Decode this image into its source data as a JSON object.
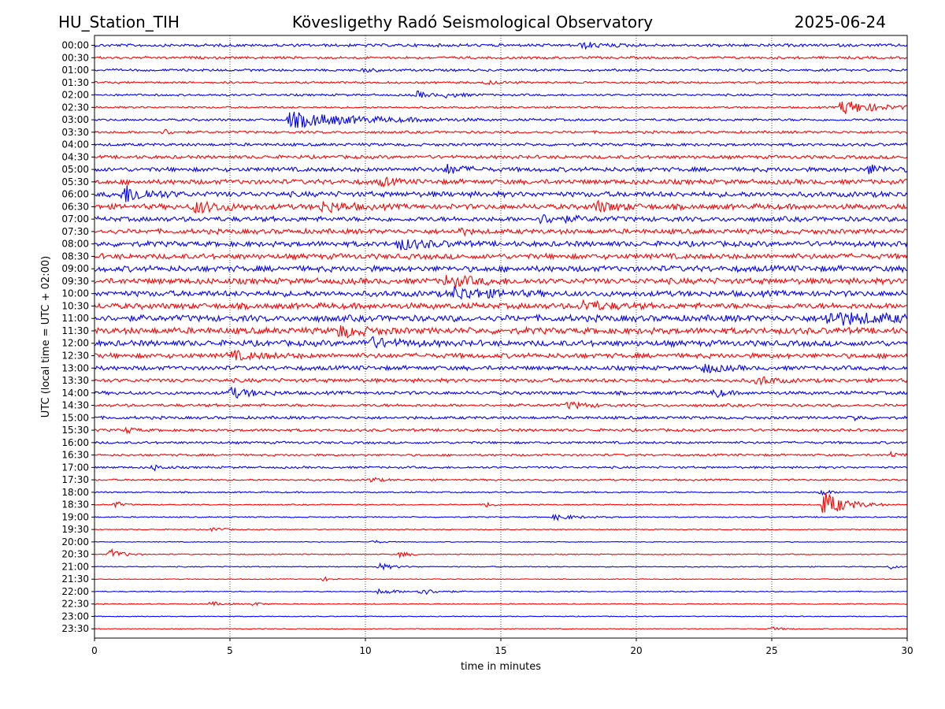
{
  "header": {
    "station": "HU_Station_TIH",
    "observatory": "Kövesligethy Radó Seismological Observatory",
    "date": "2025-06-24"
  },
  "chart_data": {
    "type": "line",
    "title": "Kövesligethy Radó Seismological Observatory",
    "xlabel": "time in minutes",
    "ylabel": "UTC (local time = UTC + 02:00)",
    "xlim": [
      0,
      30
    ],
    "xticks": [
      "0",
      "5",
      "10",
      "15",
      "20",
      "25",
      "30"
    ],
    "grid": "vertical dotted lines at each x tick",
    "colors": {
      "even_rows": "#0000ff",
      "odd_rows": "#ff0000",
      "grid": "#000000"
    },
    "rows": [
      {
        "label": "00:00",
        "color": "#0000ff",
        "amp": 0.3,
        "events": [
          {
            "t": 18.0,
            "a": 0.5,
            "d": 0.8
          }
        ]
      },
      {
        "label": "00:30",
        "color": "#ff0000",
        "amp": 0.25,
        "events": []
      },
      {
        "label": "01:00",
        "color": "#0000ff",
        "amp": 0.25,
        "events": [
          {
            "t": 10.0,
            "a": 0.3,
            "d": 0.4
          }
        ]
      },
      {
        "label": "01:30",
        "color": "#ff0000",
        "amp": 0.22,
        "events": [
          {
            "t": 14.5,
            "a": 0.3,
            "d": 0.5
          }
        ]
      },
      {
        "label": "02:00",
        "color": "#0000ff",
        "amp": 0.22,
        "events": [
          {
            "t": 11.9,
            "a": 0.6,
            "d": 0.4
          },
          {
            "t": 13.0,
            "a": 0.4,
            "d": 0.6
          }
        ]
      },
      {
        "label": "02:30",
        "color": "#ff0000",
        "amp": 0.2,
        "events": [
          {
            "t": 27.6,
            "a": 1.3,
            "d": 1.2
          }
        ]
      },
      {
        "label": "03:00",
        "color": "#0000ff",
        "amp": 0.25,
        "events": [
          {
            "t": 7.2,
            "a": 1.4,
            "d": 2.4
          }
        ]
      },
      {
        "label": "03:30",
        "color": "#ff0000",
        "amp": 0.25,
        "events": [
          {
            "t": 2.6,
            "a": 0.5,
            "d": 0.3
          }
        ]
      },
      {
        "label": "04:00",
        "color": "#0000ff",
        "amp": 0.3,
        "events": []
      },
      {
        "label": "04:30",
        "color": "#ff0000",
        "amp": 0.35,
        "events": []
      },
      {
        "label": "05:00",
        "color": "#0000ff",
        "amp": 0.45,
        "events": [
          {
            "t": 13.0,
            "a": 0.8,
            "d": 0.6
          },
          {
            "t": 28.6,
            "a": 0.8,
            "d": 0.5
          }
        ]
      },
      {
        "label": "05:30",
        "color": "#ff0000",
        "amp": 0.5,
        "events": [
          {
            "t": 10.6,
            "a": 0.7,
            "d": 0.4
          }
        ]
      },
      {
        "label": "06:00",
        "color": "#0000ff",
        "amp": 0.55,
        "events": [
          {
            "t": 1.1,
            "a": 1.6,
            "d": 0.8
          }
        ]
      },
      {
        "label": "06:30",
        "color": "#ff0000",
        "amp": 0.55,
        "events": [
          {
            "t": 3.7,
            "a": 1.0,
            "d": 1.0
          },
          {
            "t": 8.4,
            "a": 0.9,
            "d": 0.8
          },
          {
            "t": 18.5,
            "a": 0.9,
            "d": 0.8
          }
        ]
      },
      {
        "label": "07:00",
        "color": "#0000ff",
        "amp": 0.5,
        "events": [
          {
            "t": 16.5,
            "a": 0.7,
            "d": 1.0
          }
        ]
      },
      {
        "label": "07:30",
        "color": "#ff0000",
        "amp": 0.5,
        "events": [
          {
            "t": 13.4,
            "a": 0.7,
            "d": 0.3
          }
        ]
      },
      {
        "label": "08:00",
        "color": "#0000ff",
        "amp": 0.55,
        "events": [
          {
            "t": 11.2,
            "a": 0.9,
            "d": 1.0
          }
        ]
      },
      {
        "label": "08:30",
        "color": "#ff0000",
        "amp": 0.55,
        "events": []
      },
      {
        "label": "09:00",
        "color": "#0000ff",
        "amp": 0.6,
        "events": []
      },
      {
        "label": "09:30",
        "color": "#ff0000",
        "amp": 0.6,
        "events": [
          {
            "t": 13.0,
            "a": 0.9,
            "d": 1.0
          }
        ]
      },
      {
        "label": "10:00",
        "color": "#0000ff",
        "amp": 0.6,
        "events": [
          {
            "t": 13.3,
            "a": 1.0,
            "d": 1.2
          }
        ]
      },
      {
        "label": "10:30",
        "color": "#ff0000",
        "amp": 0.6,
        "events": [
          {
            "t": 18.0,
            "a": 0.9,
            "d": 0.8
          }
        ]
      },
      {
        "label": "11:00",
        "color": "#0000ff",
        "amp": 0.65,
        "events": [
          {
            "t": 27.0,
            "a": 1.0,
            "d": 2.5
          }
        ]
      },
      {
        "label": "11:30",
        "color": "#ff0000",
        "amp": 0.65,
        "events": [
          {
            "t": 9.0,
            "a": 1.0,
            "d": 0.8
          }
        ]
      },
      {
        "label": "12:00",
        "color": "#0000ff",
        "amp": 0.6,
        "events": [
          {
            "t": 10.0,
            "a": 0.9,
            "d": 1.0
          }
        ]
      },
      {
        "label": "12:30",
        "color": "#ff0000",
        "amp": 0.5,
        "events": [
          {
            "t": 5.0,
            "a": 0.7,
            "d": 1.0
          }
        ]
      },
      {
        "label": "13:00",
        "color": "#0000ff",
        "amp": 0.45,
        "events": [
          {
            "t": 22.5,
            "a": 0.8,
            "d": 0.6
          }
        ]
      },
      {
        "label": "13:30",
        "color": "#ff0000",
        "amp": 0.4,
        "events": [
          {
            "t": 24.5,
            "a": 0.8,
            "d": 0.5
          }
        ]
      },
      {
        "label": "14:00",
        "color": "#0000ff",
        "amp": 0.35,
        "events": [
          {
            "t": 5.0,
            "a": 0.9,
            "d": 0.8
          },
          {
            "t": 22.9,
            "a": 0.9,
            "d": 0.3
          }
        ]
      },
      {
        "label": "14:30",
        "color": "#ff0000",
        "amp": 0.3,
        "events": [
          {
            "t": 17.5,
            "a": 0.6,
            "d": 0.6
          }
        ]
      },
      {
        "label": "15:00",
        "color": "#0000ff",
        "amp": 0.3,
        "events": [
          {
            "t": 28.0,
            "a": 0.5,
            "d": 0.3
          }
        ]
      },
      {
        "label": "15:30",
        "color": "#ff0000",
        "amp": 0.28,
        "events": [
          {
            "t": 1.2,
            "a": 0.5,
            "d": 0.3
          }
        ]
      },
      {
        "label": "16:00",
        "color": "#0000ff",
        "amp": 0.25,
        "events": []
      },
      {
        "label": "16:30",
        "color": "#ff0000",
        "amp": 0.22,
        "events": [
          {
            "t": 29.4,
            "a": 0.5,
            "d": 0.3
          }
        ]
      },
      {
        "label": "17:00",
        "color": "#0000ff",
        "amp": 0.22,
        "events": [
          {
            "t": 2.2,
            "a": 0.5,
            "d": 0.3
          }
        ]
      },
      {
        "label": "17:30",
        "color": "#ff0000",
        "amp": 0.18,
        "events": [
          {
            "t": 10.2,
            "a": 0.5,
            "d": 0.3
          }
        ]
      },
      {
        "label": "18:00",
        "color": "#0000ff",
        "amp": 0.15,
        "events": [
          {
            "t": 26.8,
            "a": 0.6,
            "d": 0.3
          }
        ]
      },
      {
        "label": "18:30",
        "color": "#ff0000",
        "amp": 0.12,
        "events": [
          {
            "t": 0.8,
            "a": 0.7,
            "d": 0.2
          },
          {
            "t": 14.5,
            "a": 0.6,
            "d": 0.2
          },
          {
            "t": 26.9,
            "a": 2.4,
            "d": 0.8
          }
        ]
      },
      {
        "label": "19:00",
        "color": "#0000ff",
        "amp": 0.12,
        "events": [
          {
            "t": 17.0,
            "a": 0.5,
            "d": 0.8
          }
        ]
      },
      {
        "label": "19:30",
        "color": "#ff0000",
        "amp": 0.1,
        "events": [
          {
            "t": 4.4,
            "a": 0.5,
            "d": 0.3
          }
        ]
      },
      {
        "label": "20:00",
        "color": "#0000ff",
        "amp": 0.08,
        "events": [
          {
            "t": 10.3,
            "a": 0.3,
            "d": 0.3
          }
        ]
      },
      {
        "label": "20:30",
        "color": "#ff0000",
        "amp": 0.1,
        "events": [
          {
            "t": 0.6,
            "a": 1.0,
            "d": 0.4
          },
          {
            "t": 11.3,
            "a": 0.6,
            "d": 0.3
          }
        ]
      },
      {
        "label": "21:00",
        "color": "#0000ff",
        "amp": 0.1,
        "events": [
          {
            "t": 10.5,
            "a": 0.6,
            "d": 0.5
          },
          {
            "t": 29.4,
            "a": 0.4,
            "d": 0.2
          }
        ]
      },
      {
        "label": "21:30",
        "color": "#ff0000",
        "amp": 0.08,
        "events": [
          {
            "t": 8.5,
            "a": 0.4,
            "d": 0.2
          }
        ]
      },
      {
        "label": "22:00",
        "color": "#0000ff",
        "amp": 0.1,
        "events": [
          {
            "t": 10.5,
            "a": 0.5,
            "d": 0.6
          },
          {
            "t": 12.0,
            "a": 0.6,
            "d": 0.6
          }
        ]
      },
      {
        "label": "22:30",
        "color": "#ff0000",
        "amp": 0.1,
        "events": [
          {
            "t": 4.3,
            "a": 0.4,
            "d": 0.4
          },
          {
            "t": 5.8,
            "a": 0.4,
            "d": 0.3
          }
        ]
      },
      {
        "label": "23:00",
        "color": "#0000ff",
        "amp": 0.08,
        "events": []
      },
      {
        "label": "23:30",
        "color": "#ff0000",
        "amp": 0.08,
        "events": [
          {
            "t": 25.0,
            "a": 0.3,
            "d": 0.4
          }
        ]
      }
    ]
  }
}
